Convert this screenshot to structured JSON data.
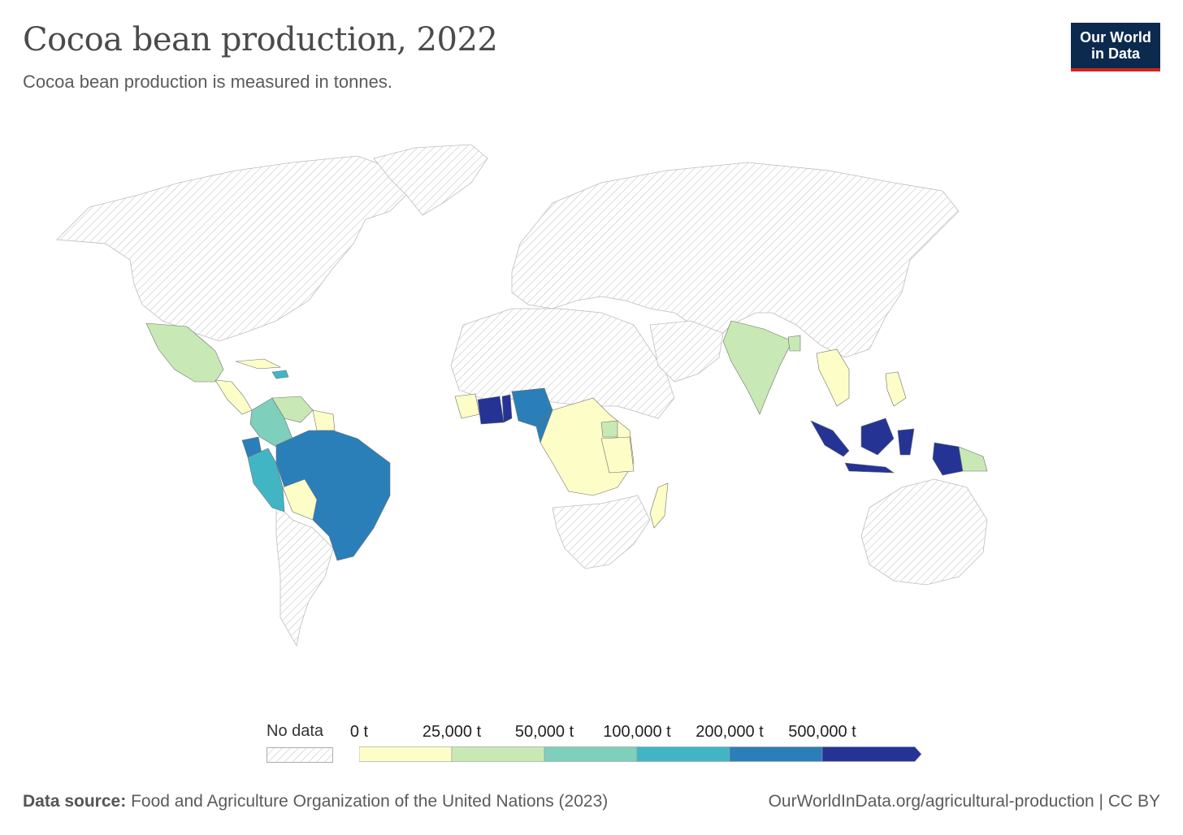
{
  "header": {
    "title": "Cocoa bean production, 2022",
    "subtitle": "Cocoa bean production is measured in tonnes."
  },
  "logo": {
    "line1": "Our World",
    "line2": "in Data"
  },
  "legend": {
    "no_data_label": "No data",
    "ticks": [
      "0 t",
      "25,000 t",
      "50,000 t",
      "100,000 t",
      "200,000 t",
      "500,000 t"
    ],
    "colors": [
      "#fdfec7",
      "#c8e9b5",
      "#7ecfbc",
      "#42b5c5",
      "#2b7fb9",
      "#253494"
    ],
    "no_data_color": "#d9d9d9"
  },
  "footer": {
    "source_label": "Data source:",
    "source_text": "Food and Agriculture Organization of the United Nations (2023)",
    "url_license": "OurWorldInData.org/agricultural-production | CC BY"
  },
  "map_data": {
    "type": "choropleth",
    "year": 2022,
    "unit": "t",
    "countries": [
      {
        "region": "Côte d'Ivoire",
        "bin": 5
      },
      {
        "region": "Indonesia",
        "bin": 5
      },
      {
        "region": "Ghana",
        "bin": 5
      },
      {
        "region": "Nigeria",
        "bin": 4
      },
      {
        "region": "Cameroon",
        "bin": 4
      },
      {
        "region": "Brazil",
        "bin": 4
      },
      {
        "region": "Ecuador",
        "bin": 4
      },
      {
        "region": "Peru",
        "bin": 3
      },
      {
        "region": "Dominican Republic",
        "bin": 3
      },
      {
        "region": "Colombia",
        "bin": 2
      },
      {
        "region": "Mexico",
        "bin": 1
      },
      {
        "region": "India",
        "bin": 1
      },
      {
        "region": "Venezuela",
        "bin": 1
      },
      {
        "region": "Papua New Guinea",
        "bin": 1
      },
      {
        "region": "Uganda",
        "bin": 1
      },
      {
        "region": "Bangladesh",
        "bin": 1
      },
      {
        "region": "Bolivia",
        "bin": 0
      },
      {
        "region": "DR Congo",
        "bin": 0
      },
      {
        "region": "Tanzania",
        "bin": 0
      },
      {
        "region": "Madagascar",
        "bin": 0
      },
      {
        "region": "Angola",
        "bin": 0
      },
      {
        "region": "Central African Republic",
        "bin": 0
      },
      {
        "region": "Thailand",
        "bin": 0
      },
      {
        "region": "Vietnam",
        "bin": 0
      },
      {
        "region": "Philippines",
        "bin": 0
      },
      {
        "region": "Guinea",
        "bin": 0
      },
      {
        "region": "Sierra Leone",
        "bin": 0
      },
      {
        "region": "Cuba",
        "bin": 0
      },
      {
        "region": "Guatemala",
        "bin": 0
      },
      {
        "region": "Nicaragua",
        "bin": 0
      },
      {
        "region": "Guyana",
        "bin": 0
      }
    ]
  }
}
